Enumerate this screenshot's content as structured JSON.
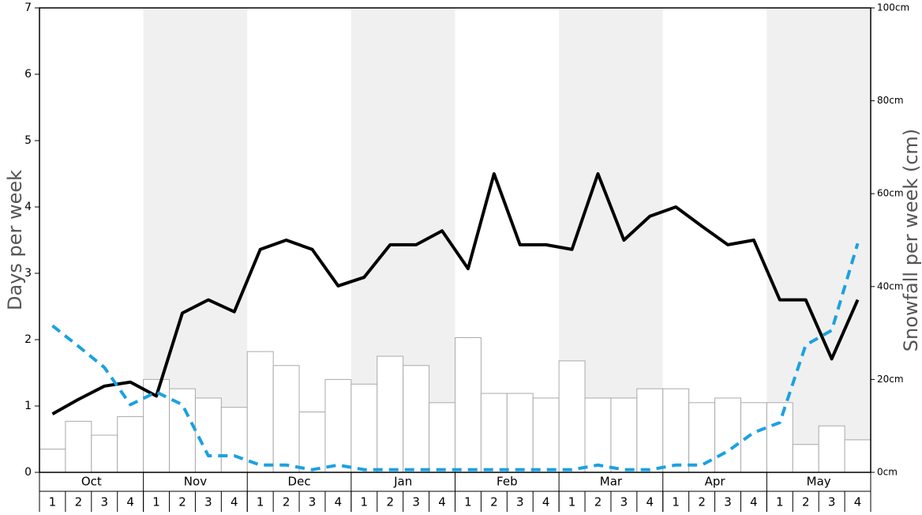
{
  "chart_data": {
    "type": "bar-line",
    "ylabel": "Days per week",
    "y2label": "Snowfall per week (cm)",
    "months": [
      "Oct",
      "Nov",
      "Dec",
      "Jan",
      "Feb",
      "Mar",
      "Apr",
      "May"
    ],
    "categories": [
      "1",
      "2",
      "3",
      "4",
      "1",
      "2",
      "3",
      "4",
      "1",
      "2",
      "3",
      "4",
      "1",
      "2",
      "3",
      "4",
      "1",
      "2",
      "3",
      "4",
      "1",
      "2",
      "3",
      "4",
      "1",
      "2",
      "3",
      "4",
      "1",
      "2",
      "3",
      "4"
    ],
    "ylim": [
      0,
      7
    ],
    "yticks": [
      0,
      1,
      2,
      3,
      4,
      5,
      6,
      7
    ],
    "y2lim": [
      0,
      100
    ],
    "y2ticks": [
      {
        "value": 0,
        "label": "0cm"
      },
      {
        "value": 20,
        "label": "20cm"
      },
      {
        "value": 40,
        "label": "40cm"
      },
      {
        "value": 60,
        "label": "60cm"
      },
      {
        "value": 80,
        "label": "80cm"
      },
      {
        "value": 100,
        "label": "100cm"
      }
    ],
    "series": [
      {
        "type": "bar",
        "axis": "y2",
        "color": "#ffffff",
        "values": [
          5,
          11,
          8,
          12,
          20,
          18,
          16,
          14,
          26,
          23,
          13,
          20,
          19,
          25,
          23,
          15,
          29,
          17,
          17,
          16,
          24,
          16,
          16,
          18,
          18,
          15,
          16,
          15,
          15,
          6,
          10,
          7
        ]
      },
      {
        "type": "line",
        "color": "#000000",
        "values": [
          0.88,
          1.1,
          1.3,
          1.36,
          1.15,
          2.4,
          2.6,
          2.42,
          3.36,
          3.5,
          3.36,
          2.81,
          2.94,
          3.43,
          3.43,
          3.64,
          3.07,
          4.5,
          3.43,
          3.43,
          3.36,
          4.5,
          3.5,
          3.86,
          4.0,
          3.71,
          3.43,
          3.5,
          2.6,
          2.6,
          1.71,
          2.6
        ]
      },
      {
        "type": "dashed-line",
        "color": "#1ba1e2",
        "values": [
          2.21,
          1.9,
          1.58,
          1.02,
          1.21,
          1.02,
          0.25,
          0.25,
          0.11,
          0.11,
          0.04,
          0.11,
          0.04,
          0.04,
          0.04,
          0.04,
          0.04,
          0.04,
          0.04,
          0.04,
          0.04,
          0.11,
          0.04,
          0.04,
          0.11,
          0.11,
          0.32,
          0.6,
          0.75,
          1.92,
          2.14,
          3.45
        ]
      }
    ]
  }
}
